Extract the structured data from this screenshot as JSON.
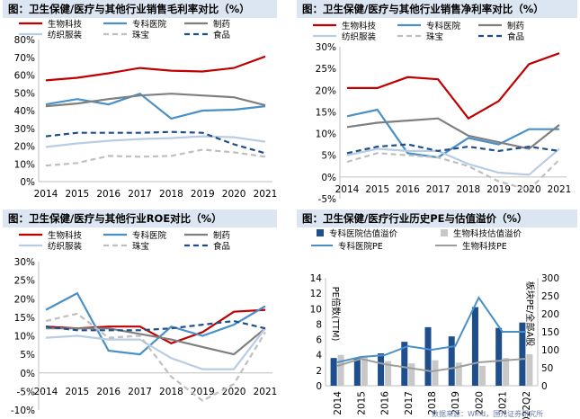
{
  "chart_data": [
    {
      "type": "line",
      "title": "图：卫生保健/医疗与其他行业销售毛利率对比（%）",
      "x": [
        "2014",
        "2015",
        "2016",
        "2017",
        "2018",
        "2019",
        "2020",
        "2021"
      ],
      "ylim": [
        0,
        80
      ],
      "yticks": [
        "0%",
        "10%",
        "20%",
        "30%",
        "40%",
        "50%",
        "60%",
        "70%",
        "80%"
      ],
      "grid": false,
      "legend": "top",
      "series": [
        {
          "name": "生物科技",
          "color": "#c00000",
          "dash": "solid",
          "values": [
            57,
            58.5,
            61,
            64,
            62.5,
            62,
            64,
            70.5
          ]
        },
        {
          "name": "专科医院",
          "color": "#4a90c8",
          "dash": "solid",
          "values": [
            43.5,
            46.5,
            43.5,
            49.5,
            35.5,
            40,
            40.5,
            42.5
          ]
        },
        {
          "name": "制药",
          "color": "#7f7f7f",
          "dash": "solid",
          "values": [
            42.5,
            44,
            46.5,
            48.5,
            49.5,
            48.5,
            47.5,
            43
          ]
        },
        {
          "name": "纺织服装",
          "color": "#b8cce4",
          "dash": "solid",
          "values": [
            19.5,
            21.5,
            23,
            24,
            24.5,
            25.5,
            25,
            22.5
          ]
        },
        {
          "name": "珠宝",
          "color": "#bfbfbf",
          "dash": "dash",
          "values": [
            9,
            10.5,
            14.5,
            14,
            14.5,
            18,
            16.5,
            14
          ]
        },
        {
          "name": "食品",
          "color": "#1f4e8c",
          "dash": "dash",
          "values": [
            25.5,
            27.5,
            27.5,
            27.5,
            28,
            27.5,
            21,
            16
          ]
        }
      ]
    },
    {
      "type": "line",
      "title": "图：卫生保健/医疗与其他行业销售净利率对比（%）",
      "x": [
        "2014",
        "2015",
        "2016",
        "2017",
        "2018",
        "2019",
        "2020",
        "2021"
      ],
      "ylim": [
        -5,
        30
      ],
      "yticks": [
        "-5%",
        "0%",
        "5%",
        "10%",
        "15%",
        "20%",
        "25%",
        "30%"
      ],
      "grid": false,
      "legend": "top",
      "series": [
        {
          "name": "生物科技",
          "color": "#c00000",
          "dash": "solid",
          "values": [
            20.5,
            20.5,
            23,
            22.5,
            13.5,
            17.5,
            26,
            28.5
          ]
        },
        {
          "name": "专科医院",
          "color": "#4a90c8",
          "dash": "solid",
          "values": [
            14,
            15.5,
            5.5,
            4.5,
            9,
            7.5,
            11,
            11
          ]
        },
        {
          "name": "制药",
          "color": "#7f7f7f",
          "dash": "solid",
          "values": [
            11.5,
            12.5,
            13,
            13.5,
            9.5,
            8,
            6.5,
            12
          ]
        },
        {
          "name": "纺织服装",
          "color": "#b8cce4",
          "dash": "solid",
          "values": [
            5,
            6.5,
            6,
            6,
            3,
            1,
            0.5,
            6.5
          ]
        },
        {
          "name": "珠宝",
          "color": "#bfbfbf",
          "dash": "dash",
          "values": [
            3.5,
            5.5,
            5,
            4.5,
            2.5,
            -1,
            -3,
            4
          ]
        },
        {
          "name": "食品",
          "color": "#1f4e8c",
          "dash": "dash",
          "values": [
            5.5,
            7,
            7.5,
            6,
            7,
            6,
            7,
            6
          ]
        }
      ]
    },
    {
      "type": "line",
      "title": "图：卫生保健/医疗与其他行业ROE对比（%）",
      "x": [
        "2014",
        "2015",
        "2016",
        "2017",
        "2018",
        "2019",
        "2020",
        "2021"
      ],
      "ylim": [
        -10,
        30
      ],
      "yticks": [
        "-10%",
        "-5%",
        "0%",
        "5%",
        "10%",
        "15%",
        "20%",
        "25%",
        "30%"
      ],
      "grid": false,
      "legend": "top",
      "series": [
        {
          "name": "生物科技",
          "color": "#c00000",
          "dash": "solid",
          "values": [
            12.5,
            12,
            12.5,
            12.5,
            8,
            11,
            16.5,
            17
          ]
        },
        {
          "name": "专科医院",
          "color": "#4a90c8",
          "dash": "solid",
          "values": [
            17,
            21.5,
            6,
            5,
            12.5,
            10,
            13,
            18
          ]
        },
        {
          "name": "制药",
          "color": "#7f7f7f",
          "dash": "solid",
          "values": [
            12,
            12,
            12,
            10.5,
            9,
            7,
            5,
            12
          ]
        },
        {
          "name": "纺织服装",
          "color": "#b8cce4",
          "dash": "solid",
          "values": [
            9.5,
            10,
            9,
            9,
            4,
            1,
            1,
            12
          ]
        },
        {
          "name": "珠宝",
          "color": "#bfbfbf",
          "dash": "dash",
          "values": [
            14,
            16,
            9.5,
            10,
            -1,
            -7.5,
            -3,
            11
          ]
        },
        {
          "name": "食品",
          "color": "#1f4e8c",
          "dash": "dash",
          "values": [
            12.5,
            11.5,
            11.5,
            11.5,
            12,
            13,
            14,
            12
          ]
        }
      ]
    },
    {
      "type": "bar",
      "title": "图：卫生保健/医疗行业历史PE与估值溢价（%）",
      "categories": [
        "2014",
        "2015",
        "2016",
        "2017",
        "2018",
        "2019",
        "2020",
        "2021",
        "2022Q2"
      ],
      "ylim": [
        0,
        14
      ],
      "y2lim": [
        0,
        300
      ],
      "yticks": [
        "0",
        "2",
        "4",
        "6",
        "8",
        "10",
        "12",
        "14"
      ],
      "y2ticks": [
        "0",
        "50",
        "100",
        "150",
        "200",
        "250",
        "300"
      ],
      "ylabel": "PE倍数(TTM)",
      "y2label": "板块PE/全部A股",
      "legend": "top",
      "bars": [
        {
          "name": "专科医院估值溢价",
          "color": "#1f4e8c",
          "values": [
            3.6,
            3.6,
            4.2,
            5.7,
            7.6,
            6.4,
            10.2,
            7.5,
            8.2
          ]
        },
        {
          "name": "生物科技估值溢价",
          "color": "#c8c8c8",
          "values": [
            4,
            3.8,
            3.2,
            2.9,
            3.3,
            3,
            2.6,
            3.6,
            4.1
          ]
        }
      ],
      "lines": [
        {
          "name": "专科医院PE",
          "color": "#4a90c8",
          "axis": "right",
          "values": [
            65,
            80,
            85,
            110,
            100,
            110,
            245,
            150,
            150
          ]
        },
        {
          "name": "生物科技PE",
          "color": "#9e9e9e",
          "axis": "right",
          "values": [
            55,
            75,
            60,
            50,
            40,
            50,
            65,
            70,
            75
          ]
        }
      ]
    }
  ],
  "source_note": "数据来源：Wind，国元证券研究所"
}
